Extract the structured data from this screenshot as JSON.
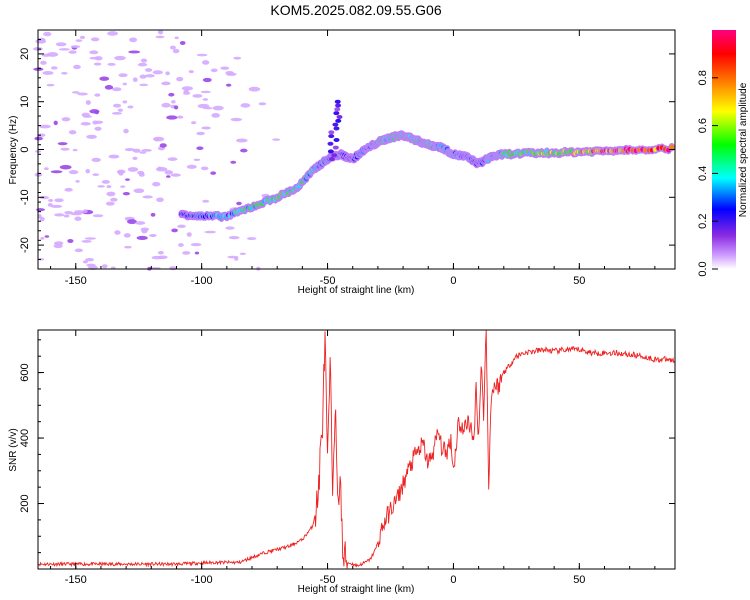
{
  "figure": {
    "title": "KOM5.2025.082.09.55.G06"
  },
  "chart_data": [
    {
      "type": "heatmap",
      "title": "KOM5.2025.082.09.55.G06",
      "xlabel": "Height of straight line (km)",
      "ylabel": "Frequency (Hz)",
      "xlim": [
        -165,
        88
      ],
      "ylim": [
        -25,
        25
      ],
      "xticks": [
        -150,
        -100,
        -50,
        0,
        50
      ],
      "yticks": [
        -20,
        -10,
        0,
        10,
        20
      ],
      "colorbar": {
        "label": "Normalized spectral amplitude",
        "range": [
          0,
          1
        ],
        "ticks": [
          0.0,
          0.2,
          0.4,
          0.6,
          0.8
        ],
        "tick_labels": [
          "0.0",
          "0.2",
          "0.4",
          "0.6",
          "0.8"
        ],
        "colors": [
          "#ffffff",
          "#cc99ff",
          "#8a2be2",
          "#0000ff",
          "#00ffff",
          "#00ff00",
          "#ffff00",
          "#ff8000",
          "#ff0000",
          "#ff0080"
        ]
      },
      "signal_track": {
        "description_points_x": [
          -108,
          -100,
          -90,
          -80,
          -70,
          -62,
          -55,
          -50,
          -45,
          -40,
          -35,
          -30,
          -25,
          -20,
          -15,
          -10,
          -5,
          0,
          5,
          10,
          15,
          20,
          30,
          40,
          50,
          60,
          70,
          88
        ],
        "frequency": [
          -13.5,
          -14,
          -14,
          -12,
          -10,
          -8,
          -4,
          -2,
          -1,
          -2,
          0,
          1.5,
          2.5,
          3,
          2,
          1,
          0.5,
          -1,
          -1.5,
          -3,
          -1.5,
          -1,
          -0.8,
          -0.7,
          -0.5,
          -0.3,
          0,
          0.2
        ],
        "amplitude": [
          0.25,
          0.3,
          0.35,
          0.45,
          0.5,
          0.45,
          0.4,
          0.35,
          0.3,
          0.25,
          0.3,
          0.4,
          0.45,
          0.5,
          0.45,
          0.45,
          0.4,
          0.35,
          0.3,
          0.25,
          0.35,
          0.45,
          0.5,
          0.6,
          0.7,
          0.85,
          0.95,
          0.9
        ]
      },
      "grid": false
    },
    {
      "type": "line",
      "xlabel": "Height of straight line (km)",
      "ylabel": "SNR (v/v)",
      "xlim": [
        -165,
        88
      ],
      "ylim": [
        0,
        730
      ],
      "xticks": [
        -150,
        -100,
        -50,
        0,
        50
      ],
      "yticks": [
        200,
        400,
        600
      ],
      "line_color": "#ff0000",
      "series": [
        {
          "x": [
            -165,
            -150,
            -130,
            -110,
            -95,
            -85,
            -80,
            -75,
            -70,
            -65,
            -60,
            -56,
            -54,
            -52,
            -51,
            -50,
            -49,
            -48,
            -47,
            -46,
            -45,
            -44,
            -42,
            -40,
            -38,
            -35,
            -33,
            -31,
            -30,
            -29,
            -27,
            -25,
            -22,
            -20,
            -18,
            -15,
            -12,
            -10,
            -8,
            -6,
            -5,
            -3,
            -1,
            0,
            2,
            4,
            6,
            8,
            9,
            10,
            11,
            12,
            13,
            14,
            15,
            16,
            18,
            20,
            22,
            25,
            28,
            32,
            36,
            40,
            45,
            50,
            55,
            60,
            65,
            70,
            75,
            80,
            85,
            88
          ],
          "y": [
            15,
            15,
            15,
            15,
            20,
            20,
            35,
            50,
            60,
            70,
            90,
            130,
            200,
            450,
            700,
            300,
            630,
            250,
            520,
            180,
            300,
            40,
            20,
            15,
            10,
            20,
            30,
            60,
            80,
            110,
            150,
            180,
            220,
            260,
            300,
            350,
            380,
            320,
            360,
            420,
            380,
            350,
            400,
            300,
            450,
            420,
            460,
            380,
            560,
            400,
            620,
            480,
            730,
            260,
            520,
            560,
            560,
            600,
            620,
            650,
            660,
            665,
            670,
            665,
            670,
            670,
            660,
            660,
            660,
            655,
            650,
            640,
            640,
            635
          ]
        }
      ],
      "grid": false
    }
  ]
}
